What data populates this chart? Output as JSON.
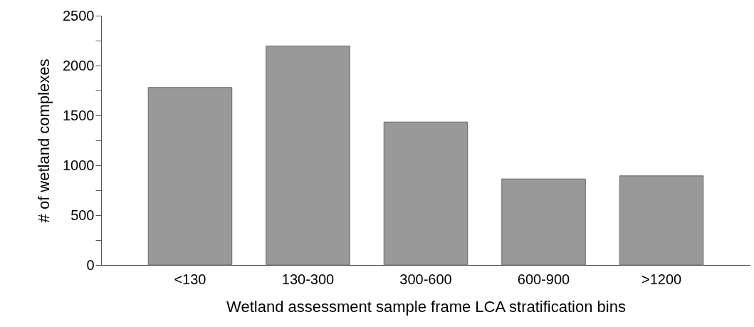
{
  "chart_data": {
    "type": "bar",
    "xlabel": "Wetland assessment sample frame LCA stratification bins",
    "ylabel": "# of wetland complexes",
    "categories": [
      "<130",
      "130-300",
      "300-600",
      "600-900",
      ">1200"
    ],
    "values": [
      1780,
      2195,
      1434,
      863,
      894
    ],
    "color": "#999999",
    "ylim": [
      0,
      2500
    ],
    "yticks": [
      0,
      {
        "value": 250,
        "label": null
      },
      500,
      {
        "value": 750,
        "label": null
      },
      1000,
      {
        "value": 1250,
        "label": null
      },
      1500,
      {
        "value": 1750,
        "label": null
      },
      2000,
      {
        "value": 2250,
        "label": null
      },
      2500
    ],
    "grid": false
  }
}
